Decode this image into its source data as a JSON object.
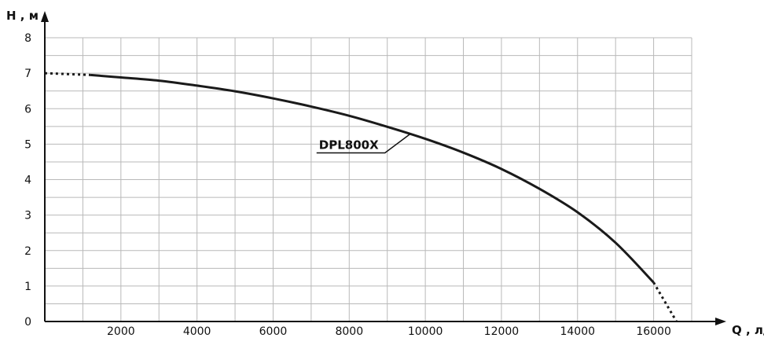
{
  "chart_data": {
    "type": "line",
    "xlabel": "Q , л/ч",
    "ylabel": "H , м",
    "xlim": [
      0,
      17000
    ],
    "ylim": [
      0,
      8
    ],
    "x_ticks": [
      2000,
      4000,
      6000,
      8000,
      10000,
      12000,
      14000,
      16000
    ],
    "y_ticks": [
      0,
      1,
      2,
      3,
      4,
      5,
      6,
      7,
      8
    ],
    "x_minor_step": 1000,
    "y_minor_step": 0.5,
    "grid": true,
    "series": [
      {
        "name": "DPL800X",
        "color": "#1a1a1a",
        "x": [
          0,
          1200,
          2000,
          3000,
          4000,
          5000,
          6000,
          7000,
          8000,
          9000,
          10000,
          11000,
          12000,
          13000,
          14000,
          15000,
          16000,
          16600
        ],
        "y": [
          7.0,
          6.95,
          6.88,
          6.79,
          6.65,
          6.49,
          6.29,
          6.06,
          5.8,
          5.49,
          5.15,
          4.76,
          4.3,
          3.74,
          3.08,
          2.22,
          1.1,
          0.0
        ],
        "solid_range": [
          1200,
          16000
        ]
      }
    ],
    "annotations": [
      {
        "text": "DPL800X",
        "series": "DPL800X",
        "at_x": 9600
      }
    ]
  }
}
